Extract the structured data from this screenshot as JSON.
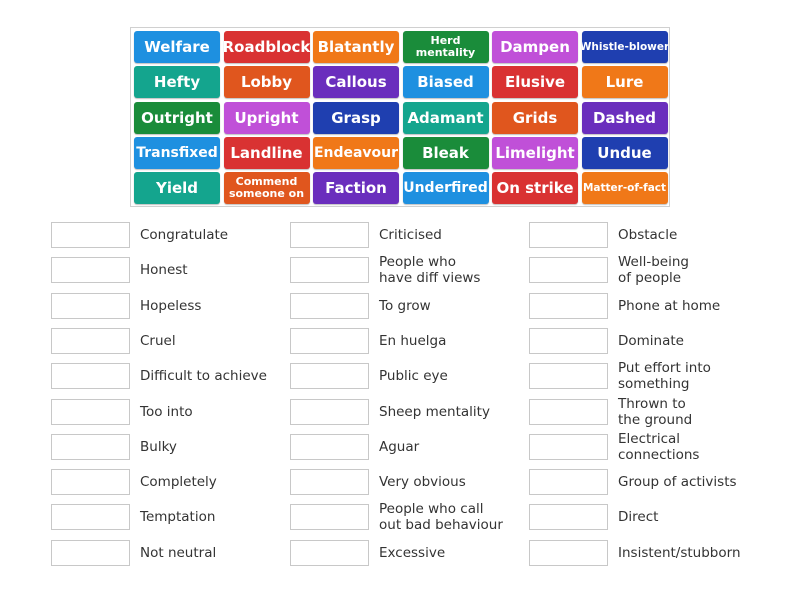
{
  "tiles": [
    {
      "label": "Welfare",
      "color": "#1e90e0"
    },
    {
      "label": "Roadblock",
      "color": "#d93232"
    },
    {
      "label": "Blatantly",
      "color": "#f07818"
    },
    {
      "label": "Herd mentality",
      "color": "#1a8c3a"
    },
    {
      "label": "Dampen",
      "color": "#c050d8"
    },
    {
      "label": "Whistle-blower",
      "color": "#1f3fb0"
    },
    {
      "label": "Hefty",
      "color": "#14a58e"
    },
    {
      "label": "Lobby",
      "color": "#e0561e"
    },
    {
      "label": "Callous",
      "color": "#6a2ebd"
    },
    {
      "label": "Biased",
      "color": "#1e90e0"
    },
    {
      "label": "Elusive",
      "color": "#d93232"
    },
    {
      "label": "Lure",
      "color": "#f07818"
    },
    {
      "label": "Outright",
      "color": "#1a8c3a"
    },
    {
      "label": "Upright",
      "color": "#c050d8"
    },
    {
      "label": "Grasp",
      "color": "#1f3fb0"
    },
    {
      "label": "Adamant",
      "color": "#14a58e"
    },
    {
      "label": "Grids",
      "color": "#e0561e"
    },
    {
      "label": "Dashed",
      "color": "#6a2ebd"
    },
    {
      "label": "Transfixed",
      "color": "#1e90e0"
    },
    {
      "label": "Landline",
      "color": "#d93232"
    },
    {
      "label": "Endeavour",
      "color": "#f07818"
    },
    {
      "label": "Bleak",
      "color": "#1a8c3a"
    },
    {
      "label": "Limelight",
      "color": "#c050d8"
    },
    {
      "label": "Undue",
      "color": "#1f3fb0"
    },
    {
      "label": "Yield",
      "color": "#14a58e"
    },
    {
      "label": "Commend someone on",
      "color": "#e0561e"
    },
    {
      "label": "Faction",
      "color": "#6a2ebd"
    },
    {
      "label": "Underfired",
      "color": "#1e90e0"
    },
    {
      "label": "On strike",
      "color": "#d93232"
    },
    {
      "label": "Matter-of-fact",
      "color": "#f07818"
    }
  ],
  "clues": [
    [
      "Congratulate",
      "Criticised",
      "Obstacle"
    ],
    [
      "Honest",
      "People who\nhave diff views",
      "Well-being\nof people"
    ],
    [
      "Hopeless",
      "To grow",
      "Phone at home"
    ],
    [
      "Cruel",
      "En huelga",
      "Dominate"
    ],
    [
      "Difficult to achieve",
      "Public eye",
      "Put effort into\nsomething"
    ],
    [
      "Too into",
      "Sheep mentality",
      "Thrown to\nthe ground"
    ],
    [
      "Bulky",
      "Aguar",
      "Electrical\nconnections"
    ],
    [
      "Completely",
      "Very obvious",
      "Group of activists"
    ],
    [
      "Temptation",
      "People who call\nout bad behaviour",
      "Direct"
    ],
    [
      "Not neutral",
      "Excessive",
      "Insistent/stubborn"
    ]
  ]
}
